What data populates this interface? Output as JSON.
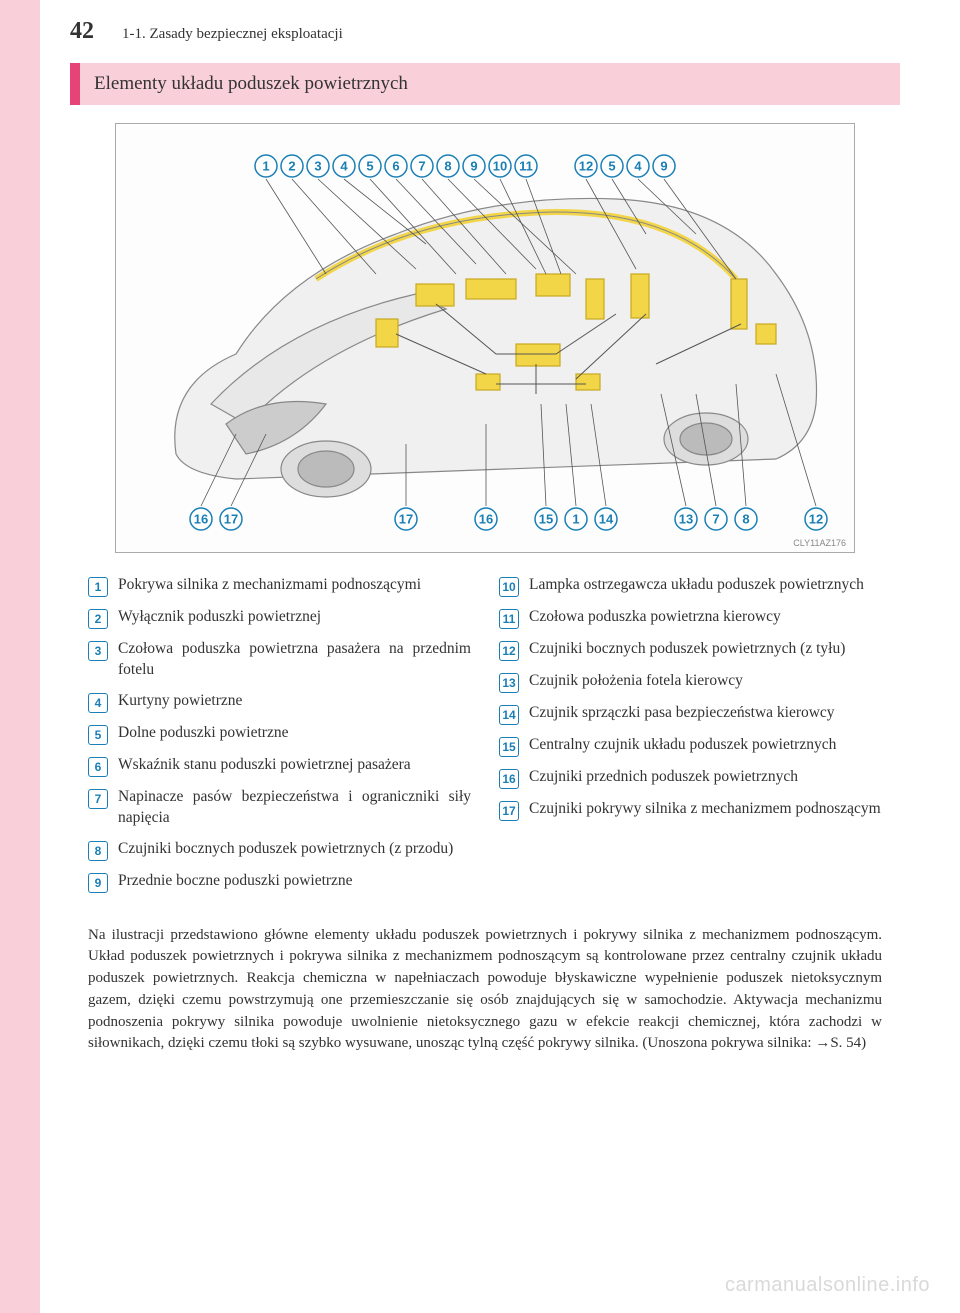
{
  "page_number": "42",
  "section_path": "1-1. Zasady bezpiecznej eksploatacji",
  "section_header": "Elementy układu poduszek powietrznych",
  "diagram": {
    "image_code": "CLY11AZ176",
    "top_callouts": [
      1,
      2,
      3,
      4,
      5,
      6,
      7,
      8,
      9,
      10,
      11,
      12,
      5,
      4,
      9
    ],
    "bottom_callouts": [
      16,
      17,
      17,
      16,
      15,
      1,
      14,
      13,
      7,
      8,
      12
    ],
    "circle_color": "#1a7fb5",
    "car_body_color": "#e8e8e8",
    "car_line_color": "#888888",
    "component_color": "#f2d648"
  },
  "items_left": [
    {
      "n": "1",
      "t": "Pokrywa silnika z mechanizmami podnoszącymi"
    },
    {
      "n": "2",
      "t": "Wyłącznik poduszki powietrznej"
    },
    {
      "n": "3",
      "t": "Czołowa poduszka powietrzna pasażera na przednim fotelu"
    },
    {
      "n": "4",
      "t": "Kurtyny powietrzne"
    },
    {
      "n": "5",
      "t": "Dolne poduszki powietrzne"
    },
    {
      "n": "6",
      "t": "Wskaźnik stanu poduszki powietrznej pasażera"
    },
    {
      "n": "7",
      "t": "Napinacze pasów bezpieczeństwa i ograniczniki siły napięcia"
    },
    {
      "n": "8",
      "t": "Czujniki bocznych poduszek powietrznych (z przodu)"
    },
    {
      "n": "9",
      "t": "Przednie boczne poduszki powietrzne"
    }
  ],
  "items_right": [
    {
      "n": "10",
      "t": "Lampka ostrzegawcza układu poduszek powietrznych"
    },
    {
      "n": "11",
      "t": "Czołowa poduszka powietrzna kierowcy"
    },
    {
      "n": "12",
      "t": "Czujniki bocznych poduszek powietrznych (z tyłu)"
    },
    {
      "n": "13",
      "t": "Czujnik położenia fotela kierowcy"
    },
    {
      "n": "14",
      "t": "Czujnik sprzączki pasa bezpieczeństwa kierowcy"
    },
    {
      "n": "15",
      "t": "Centralny czujnik układu poduszek powietrznych"
    },
    {
      "n": "16",
      "t": "Czujniki przednich poduszek powietrznych"
    },
    {
      "n": "17",
      "t": "Czujniki pokrywy silnika z mechanizmem podnoszącym"
    }
  ],
  "body_text": "Na ilustracji przedstawiono główne elementy układu poduszek powietrznych i pokrywy silnika z mechanizmem podnoszącym. Układ poduszek powietrznych i pokrywa silnika z mechanizmem podnoszącym są kontrolowane przez centralny czujnik układu poduszek powietrznych. Reakcja chemiczna w napełniaczach powoduje błyskawiczne wypełnienie poduszek nietoksycznym gazem, dzięki czemu powstrzymują one przemieszczanie się osób znajdujących się w samochodzie. Aktywacja mechanizmu podnoszenia pokrywy silnika powoduje uwolnienie nietoksycznego gazu w efekcie reakcji chemicznej, która zachodzi w siłownikach, dzięki czemu tłoki są szybko wysuwane, unosząc tylną część pokrywy silnika. (Unoszona pokrywa silnika: →S. 54)",
  "watermark": "carmanualsonline.info"
}
